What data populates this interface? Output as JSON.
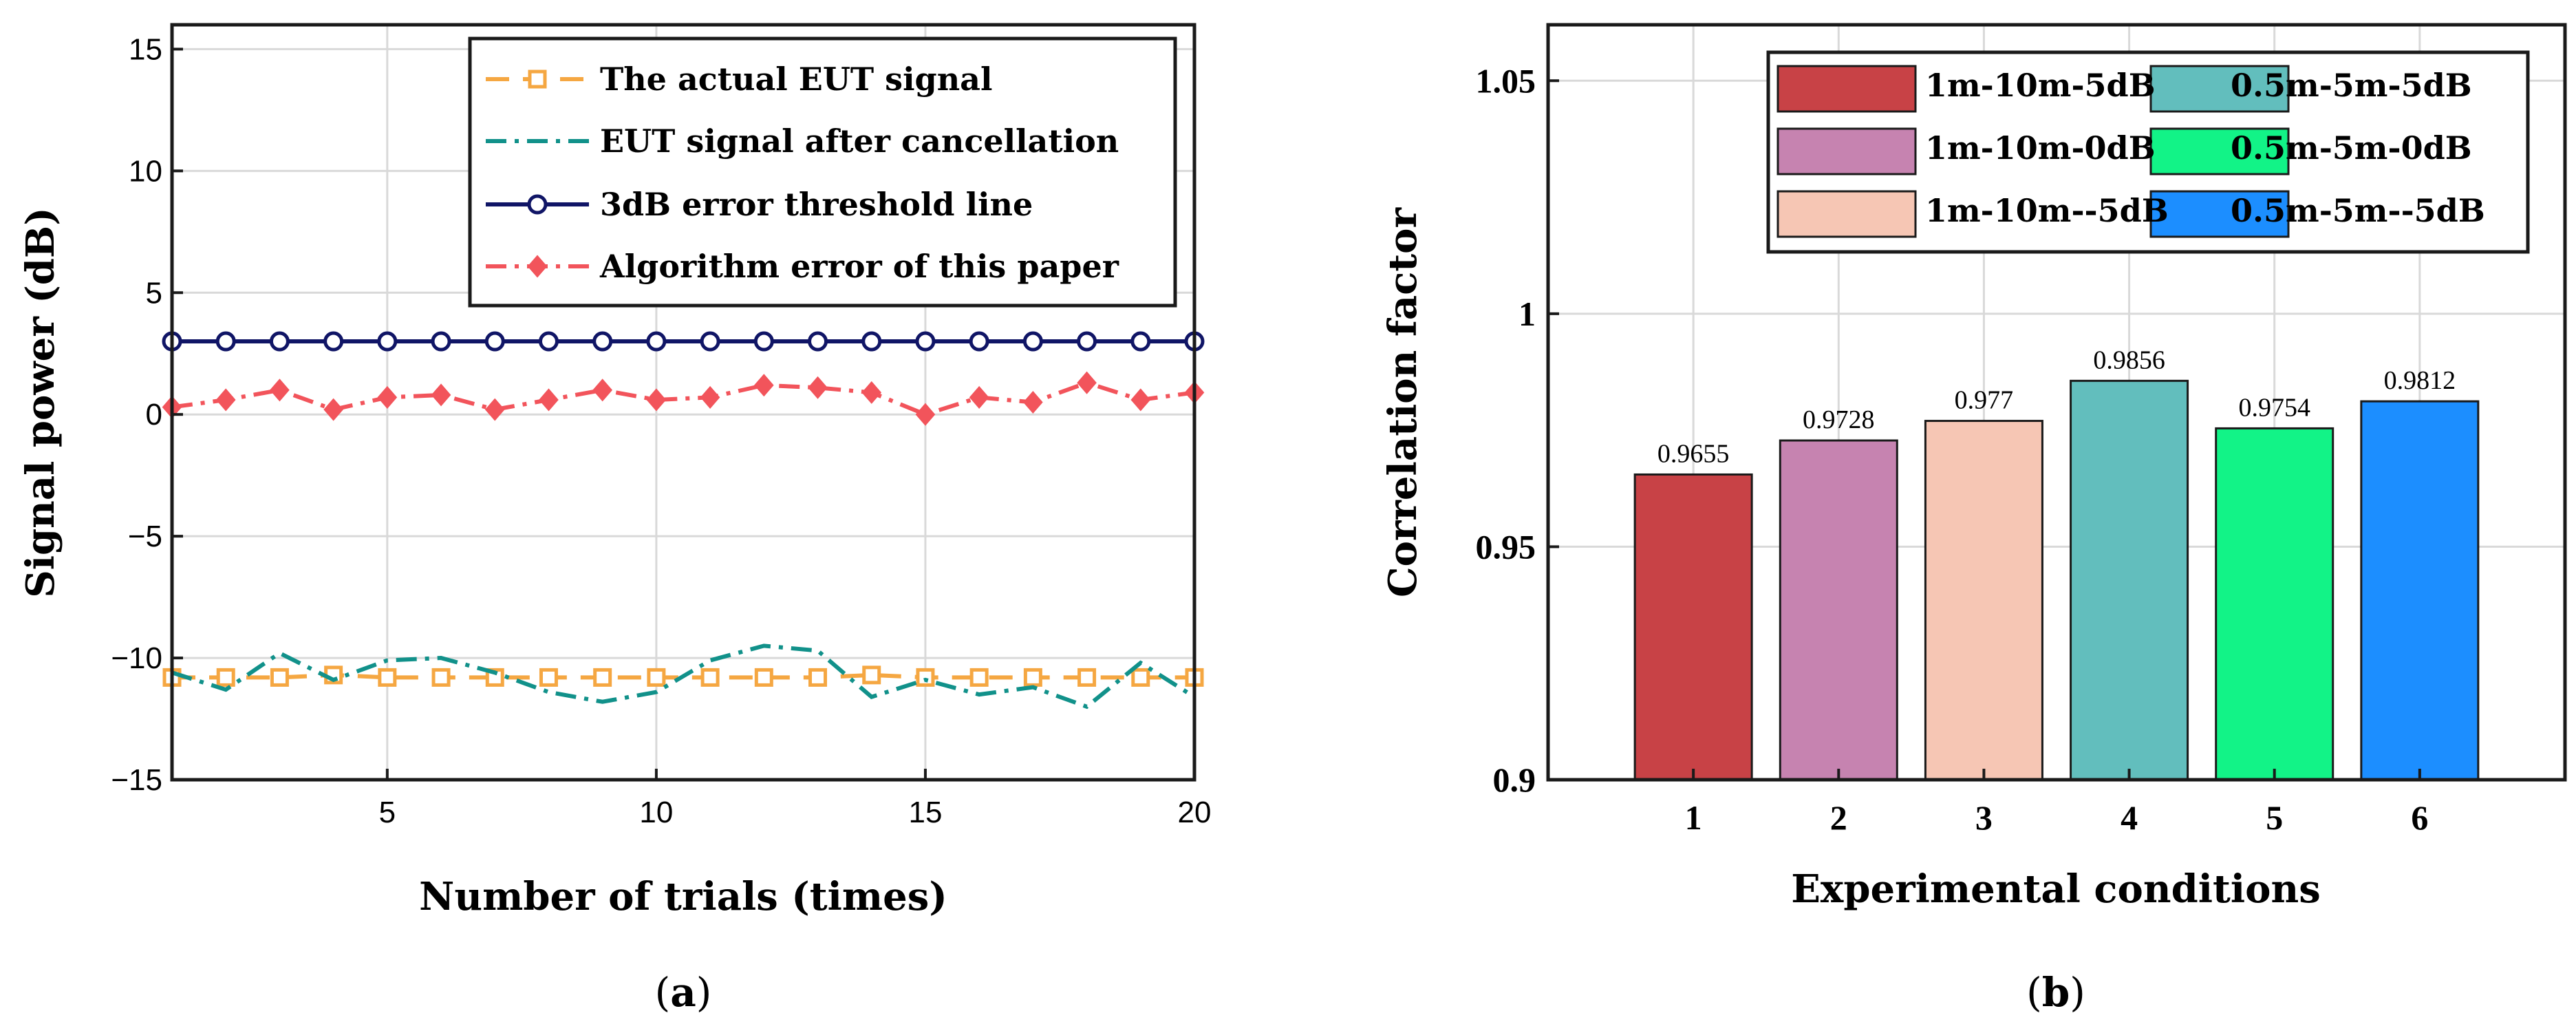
{
  "chart_data": [
    {
      "type": "line",
      "panel": "a",
      "caption_open": "(",
      "caption_letter": "a",
      "caption_close": ")",
      "title": "",
      "xlabel": "Number of trials (times)",
      "ylabel": "Signal power (dB)",
      "xlim": [
        1,
        20
      ],
      "ylim": [
        -15,
        16
      ],
      "xticks": [
        5,
        10,
        15,
        20
      ],
      "yticks": [
        15,
        10,
        5,
        0,
        -5,
        -10,
        -15
      ],
      "ytick_labels": [
        "15",
        "10",
        "5",
        "0",
        "−5",
        "−10",
        "−15"
      ],
      "grid": true,
      "legend_position": "top-right",
      "x": [
        1,
        2,
        3,
        4,
        5,
        6,
        7,
        8,
        9,
        10,
        11,
        12,
        13,
        14,
        15,
        16,
        17,
        18,
        19,
        20
      ],
      "series": [
        {
          "name": "The actual EUT signal",
          "color": "#f5a742",
          "line_style": "dashed",
          "marker": "square",
          "values": [
            -10.8,
            -10.8,
            -10.8,
            -10.7,
            -10.8,
            -10.8,
            -10.8,
            -10.8,
            -10.8,
            -10.8,
            -10.8,
            -10.8,
            -10.8,
            -10.7,
            -10.8,
            -10.8,
            -10.8,
            -10.8,
            -10.8,
            -10.8
          ]
        },
        {
          "name": "EUT signal after cancellation",
          "color": "#11918a",
          "line_style": "dashdot",
          "marker": "none",
          "values": [
            -10.6,
            -11.3,
            -9.8,
            -10.9,
            -10.1,
            -10.0,
            -10.6,
            -11.4,
            -11.8,
            -11.4,
            -10.1,
            -9.5,
            -9.7,
            -11.6,
            -10.9,
            -11.5,
            -11.2,
            -12.0,
            -10.2,
            -11.6
          ]
        },
        {
          "name": "3dB error threshold line",
          "color": "#101566",
          "line_style": "solid",
          "marker": "circle",
          "values": [
            3,
            3,
            3,
            3,
            3,
            3,
            3,
            3,
            3,
            3,
            3,
            3,
            3,
            3,
            3,
            3,
            3,
            3,
            3,
            3
          ]
        },
        {
          "name": "Algorithm error of this paper",
          "color": "#f2545b",
          "line_style": "dashdot",
          "marker": "diamond",
          "values": [
            0.3,
            0.6,
            1.0,
            0.2,
            0.7,
            0.8,
            0.2,
            0.6,
            1.0,
            0.6,
            0.7,
            1.2,
            1.1,
            0.9,
            0.0,
            0.7,
            0.5,
            1.3,
            0.6,
            0.9
          ]
        }
      ]
    },
    {
      "type": "bar",
      "panel": "b",
      "caption_open": "(",
      "caption_letter": "b",
      "caption_close": ")",
      "title": "",
      "xlabel": "Experimental conditions",
      "ylabel": "Correlation factor",
      "ylim": [
        0.9,
        1.062
      ],
      "yticks": [
        0.9,
        0.95,
        1,
        1.05
      ],
      "ytick_labels": [
        "0.9",
        "0.95",
        "1",
        "1.05"
      ],
      "grid": true,
      "legend_position": "top-right",
      "categories": [
        "1",
        "2",
        "3",
        "4",
        "5",
        "6"
      ],
      "values": [
        0.9655,
        0.9728,
        0.977,
        0.9856,
        0.9754,
        0.9812
      ],
      "value_labels": [
        "0.9655",
        "0.9728",
        "0.977",
        "0.9856",
        "0.9754",
        "0.9812"
      ],
      "bar_names": [
        "1m-10m-5dB",
        "1m-10m-0dB",
        "1m-10m--5dB",
        "0.5m-5m-5dB",
        "0.5m-5m-0dB",
        "0.5m-5m--5dB"
      ],
      "colors": [
        "#c84246",
        "#c683b0",
        "#f6c6b4",
        "#62bebd",
        "#12f387",
        "#1c8eff"
      ]
    }
  ]
}
